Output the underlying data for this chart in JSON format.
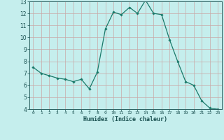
{
  "x": [
    0,
    1,
    2,
    3,
    4,
    5,
    6,
    7,
    8,
    9,
    10,
    11,
    12,
    13,
    14,
    15,
    16,
    17,
    18,
    19,
    20,
    21,
    22,
    23
  ],
  "y": [
    7.5,
    7.0,
    6.8,
    6.6,
    6.5,
    6.3,
    6.5,
    5.7,
    7.1,
    10.7,
    12.1,
    11.9,
    12.5,
    12.0,
    13.1,
    12.0,
    11.9,
    9.8,
    8.0,
    6.3,
    6.0,
    4.7,
    4.1,
    4.0
  ],
  "xlim": [
    -0.5,
    23.5
  ],
  "ylim": [
    4,
    13
  ],
  "yticks": [
    4,
    5,
    6,
    7,
    8,
    9,
    10,
    11,
    12,
    13
  ],
  "xticks": [
    0,
    1,
    2,
    3,
    4,
    5,
    6,
    7,
    8,
    9,
    10,
    11,
    12,
    13,
    14,
    15,
    16,
    17,
    18,
    19,
    20,
    21,
    22,
    23
  ],
  "xlabel": "Humidex (Indice chaleur)",
  "line_color": "#1a7a6a",
  "marker": "D",
  "marker_size": 1.8,
  "bg_color": "#c5eeed",
  "grid_color": "#c8a8a8",
  "axis_color": "#2a6060",
  "xlabel_color": "#1a5050",
  "tick_color": "#1a5050"
}
